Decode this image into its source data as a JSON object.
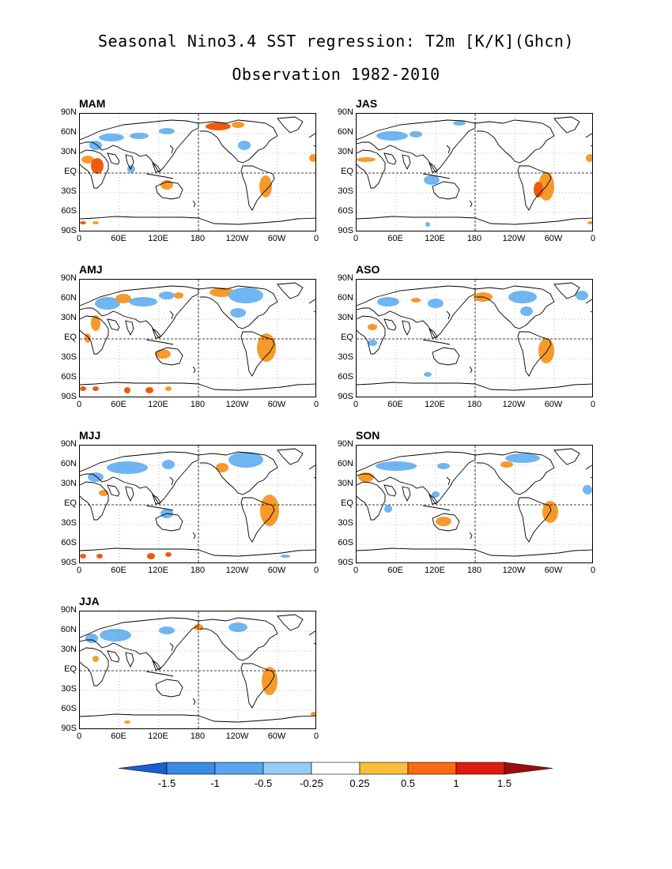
{
  "title": "Seasonal Nino3.4 SST regression: T2m [K/K](Ghcn)",
  "subtitle": "Observation 1982-2010",
  "axes": {
    "y_ticks": [
      "90N",
      "60N",
      "30N",
      "EQ",
      "30S",
      "60S",
      "90S"
    ],
    "x_ticks": [
      "0",
      "60E",
      "120E",
      "180",
      "120W",
      "60W",
      "0"
    ]
  },
  "panels": [
    {
      "label": "MAM"
    },
    {
      "label": "JAS"
    },
    {
      "label": "AMJ"
    },
    {
      "label": "ASO"
    },
    {
      "label": "MJJ"
    },
    {
      "label": "SON"
    },
    {
      "label": "JJA"
    }
  ],
  "colorbar": {
    "labels": [
      "-1.5",
      "-1",
      "-0.5",
      "-0.25",
      "0.25",
      "0.5",
      "1",
      "1.5"
    ],
    "colors": [
      "#1e6fd9",
      "#3a8ae6",
      "#5aa5f0",
      "#96cdf7",
      "#ffffff",
      "#fbbf3a",
      "#fb6a10",
      "#de1c0c",
      "#a0140a"
    ],
    "left_tip": "#1a5fd0",
    "right_tip": "#9b0d0d"
  },
  "colors": {
    "cool": "#6fb6f2",
    "cool_light": "#a7d4f7",
    "warm": "#f79a2a",
    "warm_strong": "#ee5a10"
  }
}
